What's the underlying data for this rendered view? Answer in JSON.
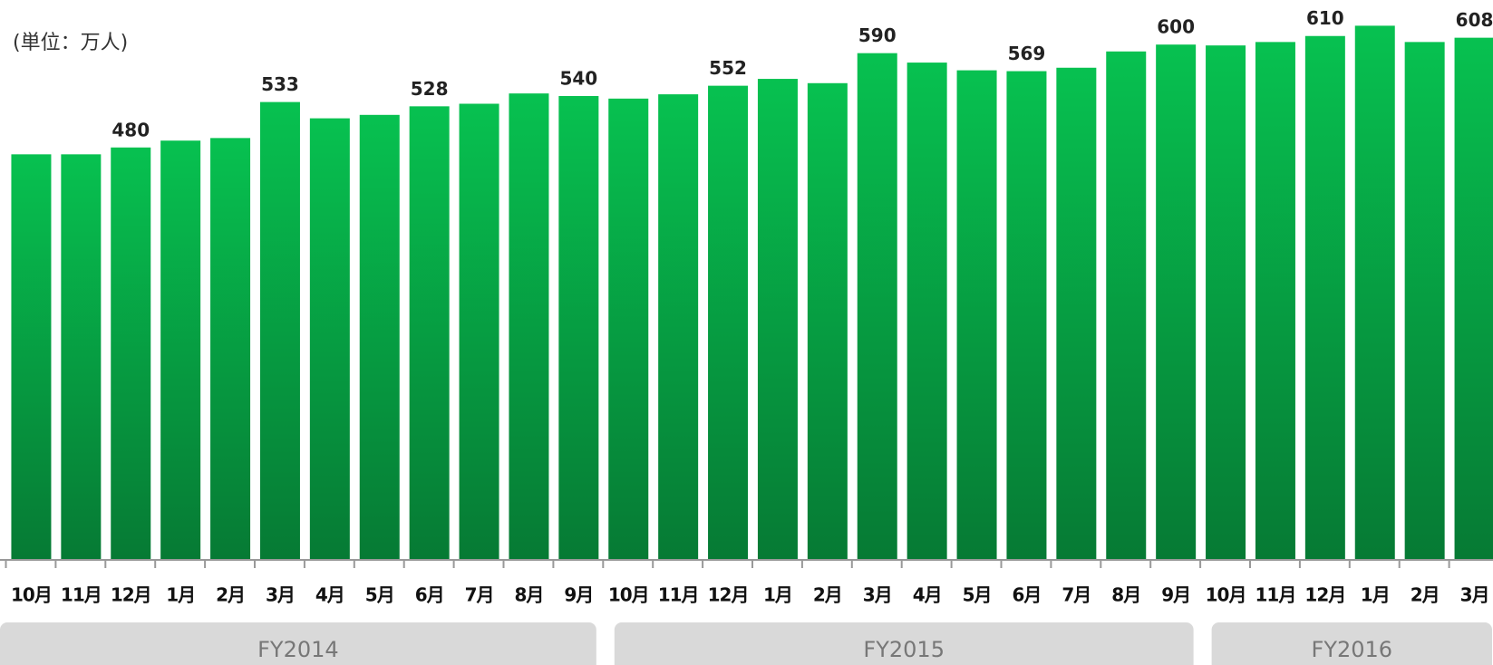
{
  "chart_data": {
    "type": "bar",
    "subtitle": "(単位：万人)",
    "categories": [
      "10月",
      "11月",
      "12月",
      "1月",
      "2月",
      "3月",
      "4月",
      "5月",
      "6月",
      "7月",
      "8月",
      "9月",
      "10月",
      "11月",
      "12月",
      "1月",
      "2月",
      "3月",
      "4月",
      "5月",
      "6月",
      "7月",
      "8月",
      "9月",
      "10月",
      "11月",
      "12月",
      "1月",
      "2月",
      "3月"
    ],
    "values": [
      472,
      472,
      480,
      488,
      491,
      533,
      514,
      518,
      528,
      531,
      543,
      540,
      537,
      542,
      552,
      560,
      555,
      590,
      579,
      570,
      569,
      573,
      592,
      600,
      599,
      603,
      610,
      622,
      603,
      608
    ],
    "value_labels": [
      null,
      null,
      "480",
      null,
      null,
      "533",
      null,
      null,
      "528",
      null,
      null,
      "540",
      null,
      null,
      "552",
      null,
      null,
      "590",
      null,
      null,
      "569",
      null,
      null,
      "600",
      null,
      null,
      "610",
      null,
      null,
      "608"
    ],
    "groups": [
      {
        "name": "FY2014",
        "count": 12
      },
      {
        "name": "FY2015",
        "count": 12
      },
      {
        "name": "FY2016",
        "count": 6
      }
    ],
    "ylim": [
      0,
      652
    ],
    "color_top": "#07c150",
    "color_bottom": "#067a34"
  }
}
